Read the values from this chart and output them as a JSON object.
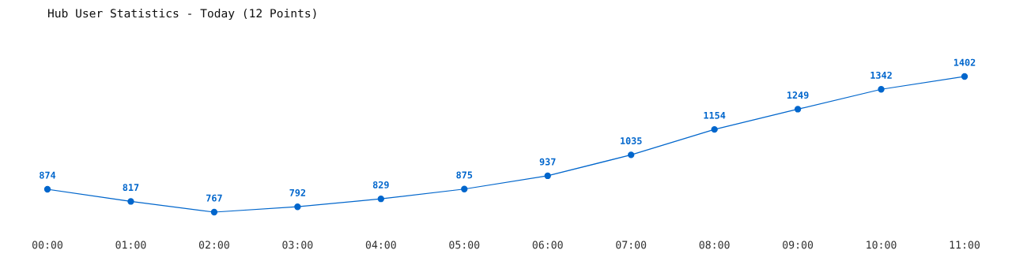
{
  "chart_data": {
    "type": "line",
    "title": "Hub User Statistics - Today (12 Points)",
    "categories": [
      "00:00",
      "01:00",
      "02:00",
      "03:00",
      "04:00",
      "05:00",
      "06:00",
      "07:00",
      "08:00",
      "09:00",
      "10:00",
      "11:00"
    ],
    "series": [
      {
        "color": "#0066cc",
        "values": [
          874,
          817,
          767,
          792,
          829,
          875,
          937,
          1035,
          1154,
          1249,
          1342,
          1402
        ]
      }
    ],
    "data_labels": true,
    "marker": "circle",
    "line_style": "solid",
    "grid": false,
    "legend": false,
    "tick_labels": "x"
  }
}
